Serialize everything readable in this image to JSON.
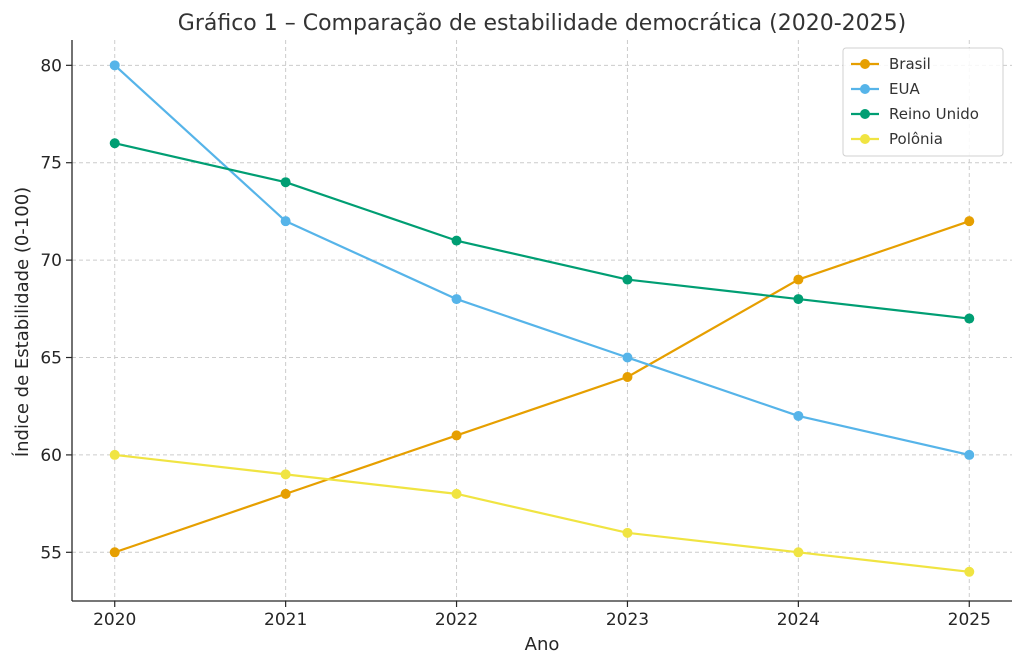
{
  "chart_data": {
    "type": "line",
    "title": "Gráfico 1 – Comparação de estabilidade democrática (2020-2025)",
    "xlabel": "Ano",
    "ylabel": "Índice de Estabilidade (0-100)",
    "x": [
      2020,
      2021,
      2022,
      2023,
      2024,
      2025
    ],
    "x_tick_labels": [
      "2020",
      "2021",
      "2022",
      "2023",
      "2024",
      "2025"
    ],
    "ylim": [
      52.5,
      81.3
    ],
    "y_ticks": [
      55,
      60,
      65,
      70,
      75,
      80
    ],
    "y_tick_labels": [
      "55",
      "60",
      "65",
      "70",
      "75",
      "80"
    ],
    "grid": true,
    "legend_position": "top-right",
    "series": [
      {
        "name": "Brasil",
        "color": "#E69F00",
        "values": [
          55,
          58,
          61,
          64,
          69,
          72
        ]
      },
      {
        "name": "EUA",
        "color": "#56B4E9",
        "values": [
          80,
          72,
          68,
          65,
          62,
          60
        ]
      },
      {
        "name": "Reino Unido",
        "color": "#009E73",
        "values": [
          76,
          74,
          71,
          69,
          68,
          67
        ]
      },
      {
        "name": "Polônia",
        "color": "#F0E442",
        "values": [
          60,
          59,
          58,
          56,
          55,
          54
        ]
      }
    ]
  }
}
